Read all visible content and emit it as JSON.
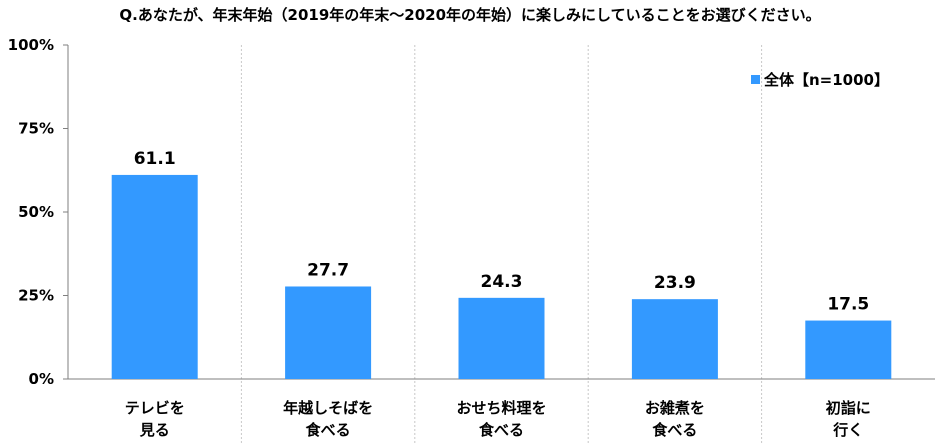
{
  "chart_data": {
    "type": "bar",
    "title": "Q.あなたが、年末年始（2019年の年末～2020年の年始）に楽しみにしていることをお選びください。",
    "categories": [
      [
        "テレビを",
        "見る"
      ],
      [
        "年越しそばを",
        "食べる"
      ],
      [
        "おせち料理を",
        "食べる"
      ],
      [
        "お雑煮を",
        "食べる"
      ],
      [
        "初詣に",
        "行く"
      ]
    ],
    "series": [
      {
        "name": "全体【n=1000】",
        "values": [
          61.1,
          27.7,
          24.3,
          23.9,
          17.5
        ]
      }
    ],
    "value_labels": [
      "61.1",
      "27.7",
      "24.3",
      "23.9",
      "17.5"
    ],
    "y_ticks": [
      "0%",
      "25%",
      "50%",
      "75%",
      "100%"
    ],
    "ylim": [
      0,
      100
    ],
    "legend_position": "top-right",
    "colors": {
      "bar": "#3399ff",
      "axis": "#7f7f7f",
      "separator": "#c8c8c8"
    }
  }
}
